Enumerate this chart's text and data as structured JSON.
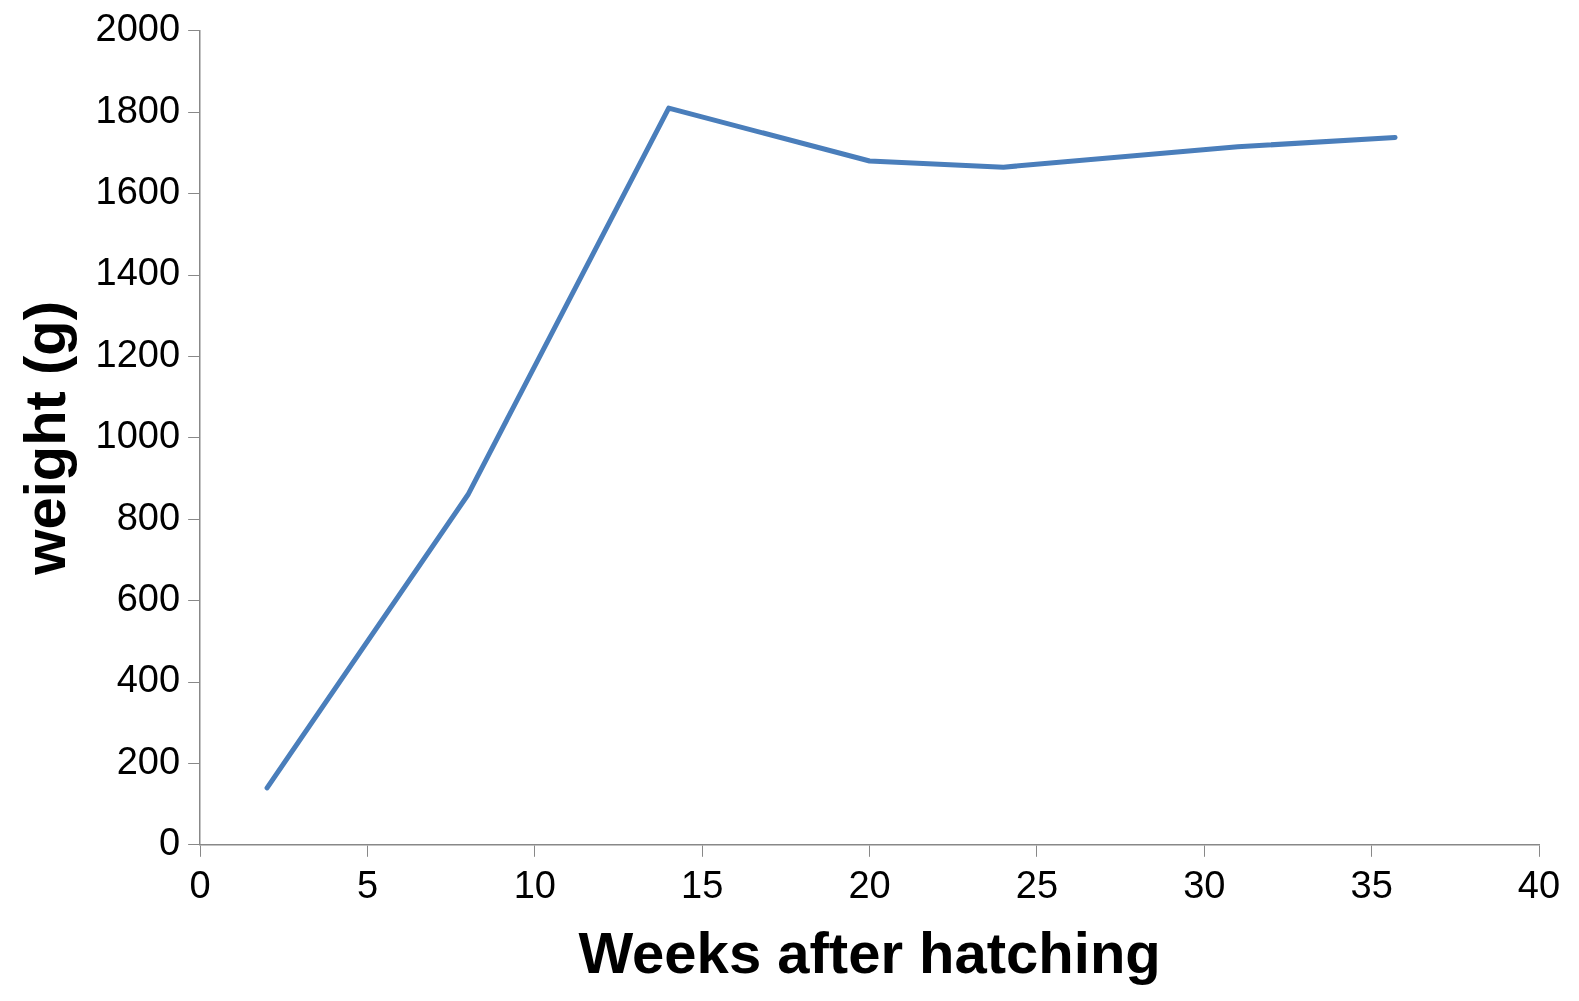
{
  "chart_data": {
    "type": "line",
    "xlabel": "Weeks after hatching",
    "ylabel": "weight (g)",
    "x": [
      2,
      8,
      14,
      20,
      24,
      31,
      35.7
    ],
    "series": [
      {
        "color": "#4a7ebb",
        "values": [
          140,
          860,
          1810,
          1680,
          1665,
          1715,
          1738
        ]
      }
    ],
    "xlim": [
      0,
      40
    ],
    "xticks": [
      0,
      5,
      10,
      15,
      20,
      25,
      30,
      35,
      40
    ],
    "ylim": [
      0,
      2000
    ],
    "yticks": [
      0,
      200,
      400,
      600,
      800,
      1000,
      1200,
      1400,
      1600,
      1800,
      2000
    ],
    "grid": false,
    "legend": false,
    "marker": "none",
    "line_style": "solid"
  }
}
